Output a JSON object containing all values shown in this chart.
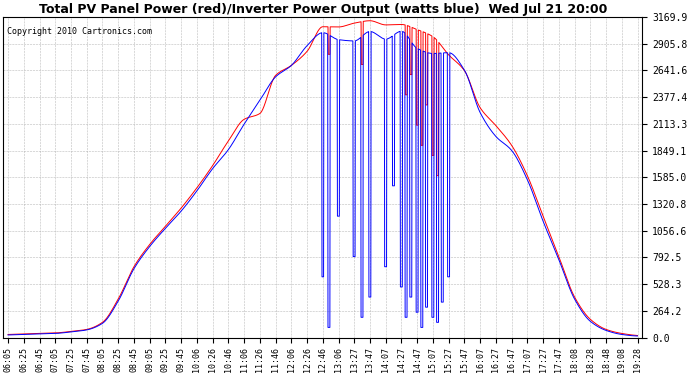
{
  "title": "Total PV Panel Power (red)/Inverter Power Output (watts blue)  Wed Jul 21 20:00",
  "copyright": "Copyright 2010 Cartronics.com",
  "ylabel_right_ticks": [
    0.0,
    264.2,
    528.3,
    792.5,
    1056.6,
    1320.8,
    1585.0,
    1849.1,
    2113.3,
    2377.4,
    2641.6,
    2905.8,
    3169.9
  ],
  "ymax": 3169.9,
  "ymin": 0,
  "background_color": "#ffffff",
  "grid_color": "#aaaaaa",
  "line_red_color": "#ff0000",
  "line_blue_color": "#0000ff",
  "x_labels": [
    "06:05",
    "06:25",
    "06:45",
    "07:05",
    "07:25",
    "07:45",
    "08:05",
    "08:25",
    "08:45",
    "09:05",
    "09:25",
    "09:45",
    "10:06",
    "10:26",
    "10:46",
    "11:06",
    "11:26",
    "11:46",
    "12:06",
    "12:26",
    "12:46",
    "13:06",
    "13:27",
    "13:47",
    "14:07",
    "14:27",
    "14:47",
    "15:07",
    "15:27",
    "15:47",
    "16:07",
    "16:27",
    "16:47",
    "17:07",
    "17:27",
    "17:47",
    "18:08",
    "18:28",
    "18:48",
    "19:08",
    "19:28"
  ],
  "figsize": [
    6.9,
    3.75
  ],
  "dpi": 100,
  "title_fontsize": 9,
  "tick_fontsize": 7,
  "xtick_fontsize": 6
}
